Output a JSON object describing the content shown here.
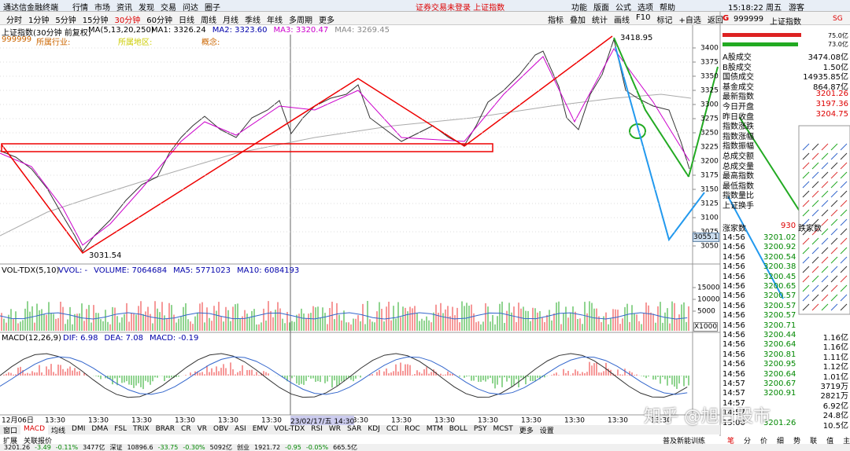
{
  "title_bar": {
    "app": "通达信金融终端",
    "menus": [
      "行情",
      "市场",
      "资讯",
      "发现",
      "交易",
      "问达",
      "圈子"
    ],
    "notice": "证券交易未登录 上证指数",
    "right_menus": [
      "功能",
      "版面",
      "公式",
      "选项",
      "帮助"
    ],
    "clock": "15:18:22 周五",
    "user": "游客"
  },
  "toolbar": {
    "periods": [
      "分时",
      "1分钟",
      "5分钟",
      "15分钟",
      "30分钟",
      "60分钟",
      "日线",
      "周线",
      "月线",
      "季线",
      "年线",
      "多周期",
      "更多"
    ],
    "tools": [
      "指标",
      "叠加",
      "统计",
      "画线",
      "F10",
      "标记",
      "+自选",
      "返回"
    ]
  },
  "chart_header": {
    "name": "上证指数(30分钟 前复权)",
    "ma": "MA(5,13,20,250)",
    "ma_values": [
      "MA1: 3326.24",
      "MA2: 3323.60",
      "MA3: 3320.47",
      "MA4: 3269.45"
    ],
    "code": "999999",
    "industry": "所属行业:",
    "region": "所属地区:",
    "concept": "概念:"
  },
  "price_axis": {
    "ticks": [
      3400,
      3375,
      3350,
      3325,
      3300,
      3275,
      3250,
      3225,
      3200,
      3175,
      3150,
      3125,
      3100,
      3075,
      3050
    ],
    "current": "3055.1"
  },
  "annotations": {
    "high": "3418.95",
    "low": "3031.54"
  },
  "volume_pane": {
    "legend": "VOL-TDX(5,10)",
    "items": [
      "VVOL: -",
      "VOLUME: 7064684",
      "MA5: 5771023",
      "MA10: 6084193"
    ],
    "ticks": [
      15000,
      10000,
      5000
    ],
    "unit": "X1000"
  },
  "macd_pane": {
    "legend": "MACD(12,26,9)",
    "items": [
      "DIF: 6.98",
      "DEA: 7.08",
      "MACD: -0.19"
    ]
  },
  "date_axis": {
    "labels": [
      "12月06日",
      "13:30",
      "13:30",
      "13:30",
      "13:30",
      "13:30",
      "13:30",
      "13:30",
      "13:30",
      "13:30",
      "13:30",
      "13:30",
      "13:30",
      "13:30",
      "13:30",
      "13:30"
    ],
    "cursor": "23/02/17/五 14:30"
  },
  "indicator_tabs": [
    "窗口",
    "MACD",
    "均线",
    "DMI",
    "DMA",
    "FSL",
    "TRIX",
    "BRAR",
    "CR",
    "VR",
    "OBV",
    "ASI",
    "EMV",
    "VOL-TDX",
    "RSI",
    "WR",
    "SAR",
    "KDJ",
    "CCI",
    "ROC",
    "MTM",
    "BOLL",
    "PSY",
    "MCST",
    "更多",
    "设置"
  ],
  "bottom_tabs": [
    "扩展",
    "关联报价"
  ],
  "status_bar": [
    "3201.26",
    "-3.49",
    "-0.11%",
    "3477亿",
    "深证",
    "10896.6",
    "-33.75",
    "-0.30%",
    "5092亿",
    "创业",
    "1921.72",
    "-0.95",
    "-0.05%",
    "665.5亿"
  ],
  "quote_panel": {
    "code": "999999",
    "name": "上证指数",
    "flag": "SG",
    "bar_values": [
      "75.0亿",
      "73.0亿"
    ],
    "stats": [
      {
        "label": "A股成交",
        "value": "3474.08亿"
      },
      {
        "label": "B股成交",
        "value": "1.50亿"
      },
      {
        "label": "国债成交",
        "value": "14935.85亿"
      },
      {
        "label": "基金成交",
        "value": "864.87亿"
      },
      {
        "label": "最新指数",
        "value": "3201.26"
      },
      {
        "label": "今日开盘",
        "value": "3197.36"
      },
      {
        "label": "昨日收盘",
        "value": "3204.75"
      },
      {
        "label": "指数涨跌"
      },
      {
        "label": "指数涨幅"
      },
      {
        "label": "指数振幅"
      },
      {
        "label": "总成交额"
      },
      {
        "label": "总成交量"
      },
      {
        "label": "最高指数"
      },
      {
        "label": "最低指数"
      },
      {
        "label": "指数量比"
      },
      {
        "label": "上证换手"
      }
    ],
    "breadth": {
      "up_label": "涨家数",
      "up": "930",
      "down_label": "跌家数"
    },
    "ticks": [
      {
        "time": "14:56",
        "price": "3201.02"
      },
      {
        "time": "14:56",
        "price": "3200.92"
      },
      {
        "time": "14:56",
        "price": "3200.54"
      },
      {
        "time": "14:56",
        "price": "3200.38"
      },
      {
        "time": "14:56",
        "price": "3200.45"
      },
      {
        "time": "14:56",
        "price": "3200.65"
      },
      {
        "time": "14:56",
        "price": "3200.57"
      },
      {
        "time": "14:56",
        "price": "3200.57"
      },
      {
        "time": "14:56",
        "price": "3200.57"
      },
      {
        "time": "14:56",
        "price": "3200.71"
      },
      {
        "time": "14:56",
        "price": "3200.44",
        "vol": "1.16亿"
      },
      {
        "time": "14:56",
        "price": "3200.64",
        "vol": "1.16亿"
      },
      {
        "time": "14:56",
        "price": "3200.81",
        "vol": "1.11亿"
      },
      {
        "time": "14:56",
        "price": "3200.95",
        "vol": "1.12亿"
      },
      {
        "time": "14:56",
        "price": "3200.64",
        "vol": "1.01亿"
      },
      {
        "time": "14:57",
        "price": "3200.67",
        "vol": "3719万"
      },
      {
        "time": "14:57",
        "price": "3200.91",
        "vol": "2821万"
      },
      {
        "time": "14:57",
        "vol": "6.92亿"
      },
      {
        "time": "14:57",
        "vol": "24.8亿"
      },
      {
        "time": "15:00",
        "price": "3201.26",
        "vol": "10.5亿"
      }
    ],
    "tabs": [
      "笔",
      "分",
      "价",
      "细",
      "势",
      "联",
      "值",
      "主"
    ],
    "footer": "普及新能训练"
  },
  "watermark": "知乎 @旭日股市"
}
